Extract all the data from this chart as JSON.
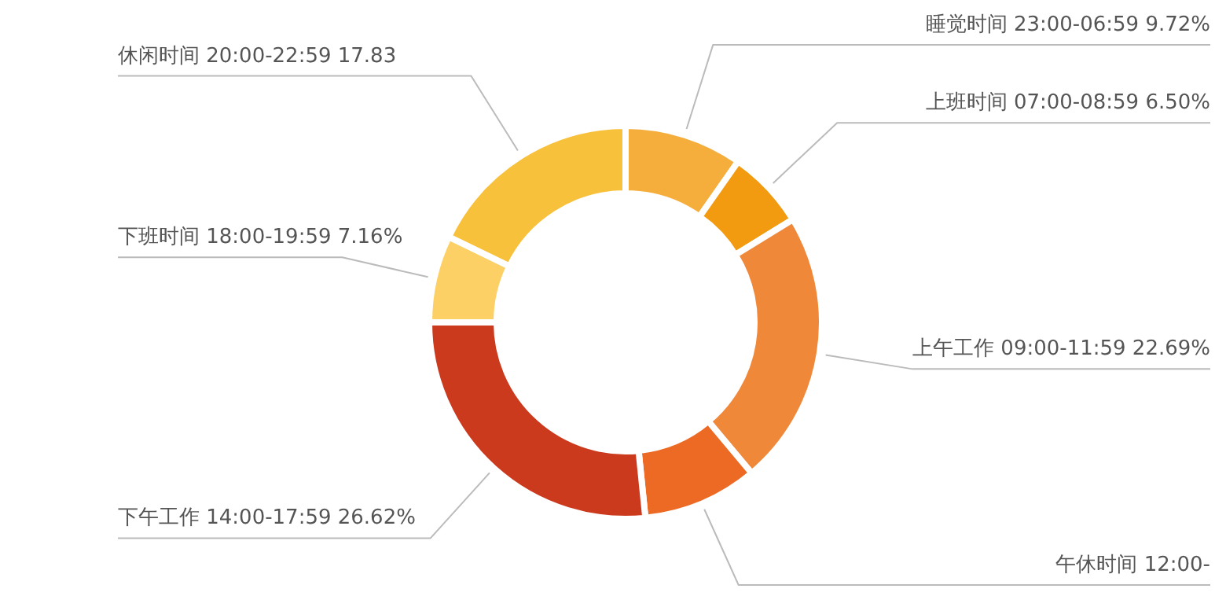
{
  "chart_data": {
    "type": "donut",
    "categories": [
      "睡觉时间 23:00-06:59",
      "上班时间 07:00-08:59",
      "上午工作 09:00-11:59",
      "午休时间 12:00-",
      "下午工作 14:00-17:59",
      "下班时间 18:00-19:59",
      "休闲时间 20:00-22:59"
    ],
    "values": [
      9.72,
      6.5,
      22.69,
      9.48,
      26.62,
      7.16,
      17.83
    ],
    "value_labels": [
      "9.72%",
      "6.50%",
      "22.69%",
      null,
      "26.62%",
      "7.16%",
      "17.83"
    ],
    "colors": [
      "#f5ad3b",
      "#f29a10",
      "#f0883a",
      "#ec6a24",
      "#cc3a1e",
      "#fcd065",
      "#f8c13c"
    ]
  }
}
